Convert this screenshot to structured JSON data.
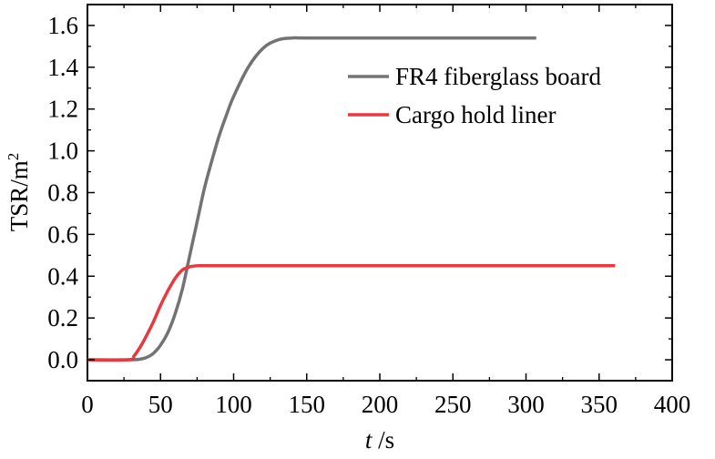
{
  "chart_data": {
    "type": "line",
    "xlabel_italic": "t",
    "xlabel_unit": " /s",
    "ylabel": "TSR/m",
    "ylabel_superscript": "2",
    "xlim": [
      0,
      400
    ],
    "ylim": [
      -0.1,
      1.7
    ],
    "xticks": [
      0,
      50,
      100,
      150,
      200,
      250,
      300,
      350,
      400
    ],
    "yticks": [
      0.0,
      0.2,
      0.4,
      0.6,
      0.8,
      1.0,
      1.2,
      1.4,
      1.6
    ],
    "ytick_labels": [
      "0.0",
      "0.2",
      "0.4",
      "0.6",
      "0.8",
      "1.0",
      "1.2",
      "1.4",
      "1.6"
    ],
    "grid": false,
    "legend_position": "top-right",
    "series": [
      {
        "name": "FR4 fiberglass board",
        "color": "#737373",
        "x": [
          0,
          28,
          35,
          40,
          45,
          50,
          55,
          60,
          65,
          70,
          75,
          80,
          85,
          90,
          95,
          100,
          110,
          120,
          130,
          140,
          150,
          200,
          250,
          307
        ],
        "y": [
          0,
          0,
          0.002,
          0.01,
          0.03,
          0.07,
          0.13,
          0.22,
          0.34,
          0.5,
          0.66,
          0.82,
          0.95,
          1.07,
          1.17,
          1.26,
          1.4,
          1.49,
          1.53,
          1.54,
          1.54,
          1.54,
          1.54,
          1.54
        ]
      },
      {
        "name": "Cargo hold liner",
        "color": "#e8393f",
        "x": [
          0,
          28,
          32,
          36,
          40,
          45,
          50,
          55,
          60,
          65,
          70,
          75,
          80,
          100,
          150,
          200,
          250,
          300,
          361
        ],
        "y": [
          0,
          0,
          0.02,
          0.06,
          0.11,
          0.18,
          0.26,
          0.33,
          0.39,
          0.43,
          0.445,
          0.45,
          0.45,
          0.45,
          0.45,
          0.45,
          0.45,
          0.45,
          0.45
        ]
      }
    ]
  }
}
